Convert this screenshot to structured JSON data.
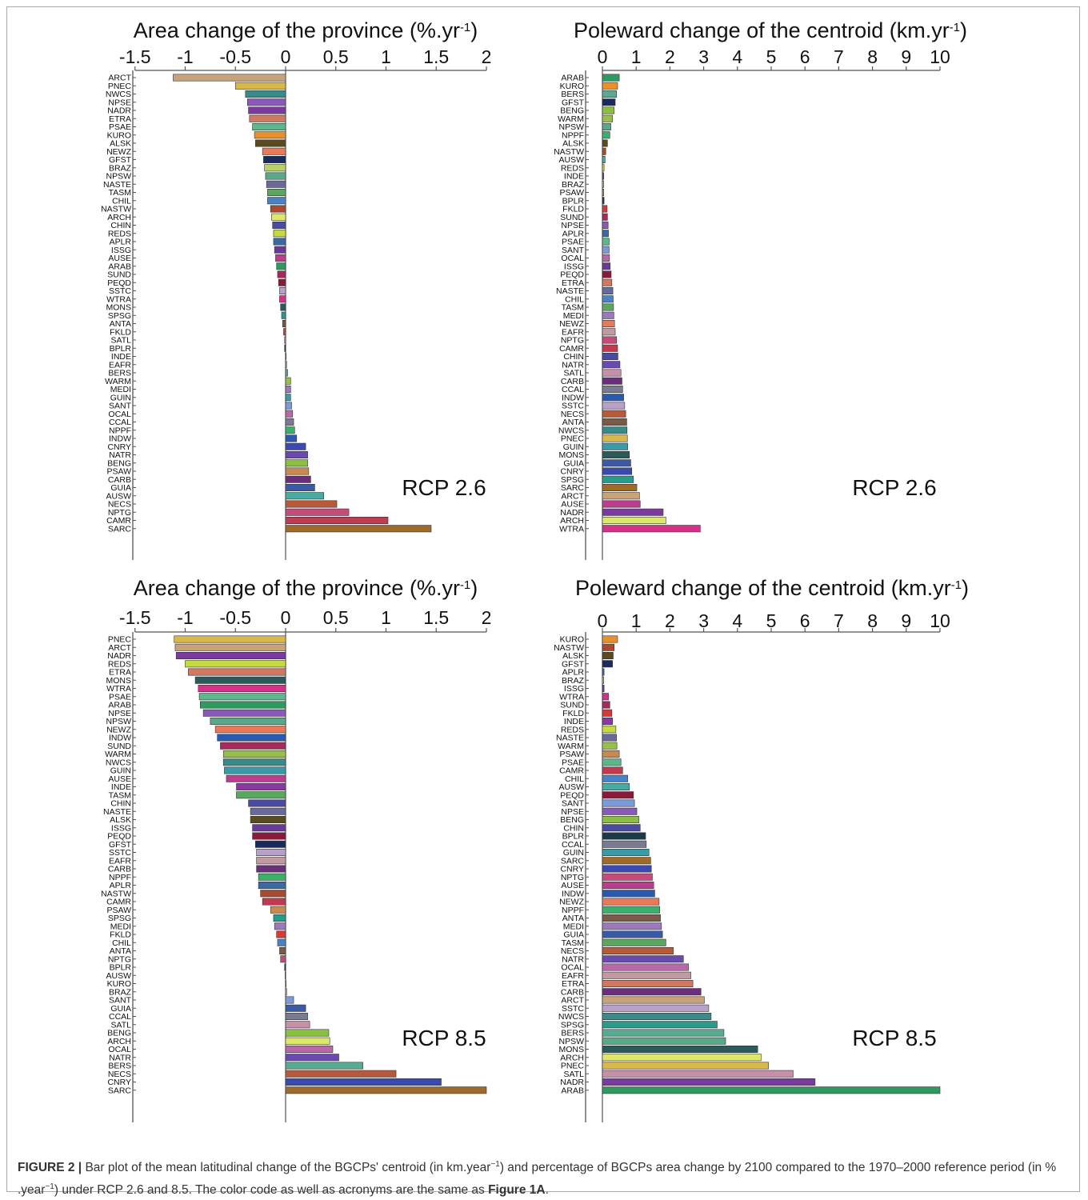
{
  "chart_data": [
    {
      "type": "bar",
      "orientation": "horizontal",
      "title": "Area change of the province (%.yr-1)",
      "scenario": "RCP 2.6",
      "xlim": [
        -1.5,
        2
      ],
      "xticks": [
        "-1.5",
        "-1",
        "-0.5",
        "0",
        "0.5",
        "1",
        "1.5",
        "2"
      ],
      "categories": [
        "ARCT",
        "PNEC",
        "NWCS",
        "NPSE",
        "NADR",
        "ETRA",
        "PSAE",
        "KURO",
        "ALSK",
        "NEWZ",
        "GFST",
        "BRAZ",
        "NPSW",
        "NASTE",
        "TASM",
        "CHIL",
        "NASTW",
        "ARCH",
        "CHIN",
        "REDS",
        "APLR",
        "ISSG",
        "AUSE",
        "ARAB",
        "SUND",
        "PEQD",
        "SSTC",
        "WTRA",
        "MONS",
        "SPSG",
        "ANTA",
        "FKLD",
        "SATL",
        "BPLR",
        "INDE",
        "EAFR",
        "BERS",
        "WARM",
        "MEDI",
        "GUIN",
        "SANT",
        "OCAL",
        "CCAL",
        "NPPF",
        "INDW",
        "CNRY",
        "NATR",
        "BENG",
        "PSAW",
        "CARB",
        "GUIA",
        "AUSW",
        "NECS",
        "NPTG",
        "CAMR",
        "SARC"
      ],
      "values": [
        -1.12,
        -0.5,
        -0.4,
        -0.38,
        -0.37,
        -0.36,
        -0.33,
        -0.31,
        -0.3,
        -0.23,
        -0.22,
        -0.21,
        -0.2,
        -0.19,
        -0.18,
        -0.18,
        -0.15,
        -0.14,
        -0.13,
        -0.12,
        -0.12,
        -0.11,
        -0.1,
        -0.09,
        -0.08,
        -0.07,
        -0.06,
        -0.06,
        -0.05,
        -0.04,
        -0.03,
        -0.02,
        -0.01,
        -0.01,
        0.005,
        0.01,
        0.02,
        0.05,
        0.05,
        0.05,
        0.06,
        0.07,
        0.08,
        0.09,
        0.11,
        0.2,
        0.22,
        0.22,
        0.23,
        0.25,
        0.29,
        0.38,
        0.51,
        0.63,
        1.02,
        1.45
      ]
    },
    {
      "type": "bar",
      "orientation": "horizontal",
      "title": "Poleward change of the centroid (km.yr-1)",
      "scenario": "RCP 2.6",
      "xlim": [
        0,
        10
      ],
      "xticks": [
        "0",
        "1",
        "2",
        "3",
        "4",
        "5",
        "6",
        "7",
        "8",
        "9",
        "10"
      ],
      "categories": [
        "ARAB",
        "KURO",
        "BERS",
        "GFST",
        "BENG",
        "WARM",
        "NPSW",
        "NPPF",
        "ALSK",
        "NASTW",
        "AUSW",
        "REDS",
        "INDE",
        "BRAZ",
        "PSAW",
        "BPLR",
        "FKLD",
        "SUND",
        "NPSE",
        "APLR",
        "PSAE",
        "SANT",
        "OCAL",
        "ISSG",
        "PEQD",
        "ETRA",
        "NASTE",
        "CHIL",
        "TASM",
        "MEDI",
        "NEWZ",
        "EAFR",
        "NPTG",
        "CAMR",
        "CHIN",
        "NATR",
        "SATL",
        "CARB",
        "CCAL",
        "INDW",
        "SSTC",
        "NECS",
        "ANTA",
        "NWCS",
        "PNEC",
        "GUIN",
        "MONS",
        "GUIA",
        "CNRY",
        "SPSG",
        "SARC",
        "ARCT",
        "AUSE",
        "NADR",
        "ARCH",
        "WTRA"
      ],
      "values": [
        0.5,
        0.45,
        0.42,
        0.38,
        0.35,
        0.3,
        0.25,
        0.22,
        0.15,
        0.1,
        0.08,
        0.05,
        0.04,
        0.04,
        0.04,
        0.05,
        0.14,
        0.15,
        0.17,
        0.18,
        0.2,
        0.2,
        0.21,
        0.23,
        0.26,
        0.28,
        0.31,
        0.32,
        0.33,
        0.34,
        0.36,
        0.38,
        0.42,
        0.45,
        0.46,
        0.52,
        0.55,
        0.58,
        0.6,
        0.63,
        0.66,
        0.69,
        0.72,
        0.73,
        0.74,
        0.75,
        0.8,
        0.84,
        0.87,
        0.92,
        1.02,
        1.1,
        1.12,
        1.8,
        1.88,
        2.9
      ]
    },
    {
      "type": "bar",
      "orientation": "horizontal",
      "title": "Area change of the province (%.yr-1)",
      "scenario": "RCP 8.5",
      "xlim": [
        -1.5,
        2
      ],
      "xticks": [
        "-1.5",
        "-1",
        "-0.5",
        "0",
        "0.5",
        "1",
        "1.5",
        "2"
      ],
      "categories": [
        "PNEC",
        "ARCT",
        "NADR",
        "REDS",
        "ETRA",
        "MONS",
        "WTRA",
        "PSAE",
        "ARAB",
        "NPSE",
        "NPSW",
        "NEWZ",
        "INDW",
        "SUND",
        "WARM",
        "NWCS",
        "GUIN",
        "AUSE",
        "INDE",
        "TASM",
        "CHIN",
        "NASTE",
        "ALSK",
        "ISSG",
        "PEQD",
        "GFST",
        "SSTC",
        "EAFR",
        "CARB",
        "NPPF",
        "APLR",
        "NASTW",
        "CAMR",
        "PSAW",
        "SPSG",
        "MEDI",
        "FKLD",
        "CHIL",
        "ANTA",
        "NPTG",
        "BPLR",
        "AUSW",
        "KURO",
        "BRAZ",
        "SANT",
        "GUIA",
        "CCAL",
        "SATL",
        "BENG",
        "ARCH",
        "OCAL",
        "NATR",
        "BERS",
        "NECS",
        "CNRY",
        "SARC"
      ],
      "values": [
        -1.11,
        -1.1,
        -1.09,
        -1.0,
        -0.97,
        -0.9,
        -0.87,
        -0.86,
        -0.85,
        -0.82,
        -0.75,
        -0.7,
        -0.68,
        -0.65,
        -0.62,
        -0.62,
        -0.61,
        -0.59,
        -0.49,
        -0.49,
        -0.37,
        -0.35,
        -0.35,
        -0.33,
        -0.33,
        -0.3,
        -0.29,
        -0.29,
        -0.29,
        -0.27,
        -0.27,
        -0.25,
        -0.23,
        -0.15,
        -0.12,
        -0.11,
        -0.09,
        -0.08,
        -0.06,
        -0.05,
        -0.01,
        -0.005,
        0.005,
        0.01,
        0.08,
        0.2,
        0.22,
        0.24,
        0.43,
        0.44,
        0.47,
        0.53,
        0.77,
        1.1,
        1.55,
        2.0
      ]
    },
    {
      "type": "bar",
      "orientation": "horizontal",
      "title": "Poleward change of the centroid (km.yr-1)",
      "scenario": "RCP 8.5",
      "xlim": [
        0,
        10
      ],
      "xticks": [
        "0",
        "1",
        "2",
        "3",
        "4",
        "5",
        "6",
        "7",
        "8",
        "9",
        "10"
      ],
      "categories": [
        "KURO",
        "NASTW",
        "ALSK",
        "GFST",
        "APLR",
        "BRAZ",
        "ISSG",
        "WTRA",
        "SUND",
        "FKLD",
        "INDE",
        "REDS",
        "NASTE",
        "WARM",
        "PSAW",
        "PSAE",
        "CAMR",
        "CHIL",
        "AUSW",
        "PEQD",
        "SANT",
        "NPSE",
        "BENG",
        "CHIN",
        "BPLR",
        "CCAL",
        "GUIN",
        "SARC",
        "CNRY",
        "NPTG",
        "AUSE",
        "INDW",
        "NEWZ",
        "NPPF",
        "ANTA",
        "MEDI",
        "GUIA",
        "TASM",
        "NECS",
        "NATR",
        "OCAL",
        "EAFR",
        "ETRA",
        "CARB",
        "ARCT",
        "SSTC",
        "NWCS",
        "SPSG",
        "BERS",
        "NPSW",
        "MONS",
        "ARCH",
        "PNEC",
        "SATL",
        "NADR",
        "ARAB"
      ],
      "values": [
        0.45,
        0.35,
        0.32,
        0.3,
        0.05,
        0.04,
        0.05,
        0.18,
        0.22,
        0.28,
        0.3,
        0.4,
        0.42,
        0.43,
        0.5,
        0.55,
        0.6,
        0.75,
        0.8,
        0.92,
        0.95,
        1.02,
        1.08,
        1.12,
        1.28,
        1.3,
        1.38,
        1.43,
        1.45,
        1.48,
        1.52,
        1.55,
        1.68,
        1.7,
        1.72,
        1.75,
        1.78,
        1.88,
        2.1,
        2.4,
        2.55,
        2.62,
        2.68,
        2.92,
        3.02,
        3.15,
        3.22,
        3.4,
        3.6,
        3.65,
        4.6,
        4.7,
        4.92,
        5.65,
        6.3,
        10.0
      ]
    }
  ],
  "rcp_labels": [
    "RCP 2.6",
    "RCP 2.6",
    "RCP 8.5",
    "RCP 8.5"
  ],
  "caption": {
    "label": "FIGURE 2 |",
    "text_before_sup1": "Bar plot of the mean latitudinal change of the BGCPs' centroid (in km.year",
    "sup1": "−1",
    "text_before_sup2": ") and percentage of BGCPs area change by 2100 compared to the 1970–2000 reference period (in % .year",
    "sup2": "−1",
    "text_after": ") under RCP 2.6 and 8.5. The color code as well as acronyms are the same as",
    "ref": "Figure 1A",
    "end": "."
  },
  "colors": {
    "ARAB": "#2e9a5e",
    "ARCH": "#dde86a",
    "ARCT": "#c8a27a",
    "ALSK": "#5a4a20",
    "ANTA": "#7a5a48",
    "APLR": "#3a6aa0",
    "AUSE": "#bb3e8e",
    "AUSW": "#48aaa0",
    "BENG": "#8ac040",
    "BERS": "#5aaa92",
    "BPLR": "#1a3a4a",
    "BRAZ": "#b8d068",
    "CAMR": "#c23a50",
    "CARB": "#6a2e7a",
    "CCAL": "#7a7a90",
    "CHIL": "#4a82c8",
    "CHIN": "#4a4aa0",
    "CNRY": "#3a4ab0",
    "EAFR": "#c09aa0",
    "ETRA": "#d07860",
    "FKLD": "#d83a3a",
    "GFST": "#1a2a5a",
    "GUIA": "#3a5aa8",
    "GUIN": "#3a9aa8",
    "INDE": "#8a3a9a",
    "INDW": "#2a5ab0",
    "ISSG": "#6a3a9a",
    "KURO": "#e8902a",
    "MEDI": "#9a7ab8",
    "MONS": "#2a5a5a",
    "NADR": "#7a3aa0",
    "NASTE": "#6a6a9a",
    "NASTW": "#a84a30",
    "NATR": "#6a4ab0",
    "NECS": "#b85a3a",
    "NEWZ": "#e87a5a",
    "NPPF": "#3ab06a",
    "NPSE": "#8a5ab8",
    "NPSW": "#5aa888",
    "NPTG": "#c84a7a",
    "NWCS": "#3a8a8a",
    "OCAL": "#b86aa8",
    "PEQD": "#8a1a3a",
    "PNEC": "#d8b84a",
    "PSAE": "#5ab88a",
    "PSAW": "#c88a50",
    "REDS": "#c8d840",
    "SANT": "#7a9ad8",
    "SARC": "#a06a2a",
    "SATL": "#c890a8",
    "SPSG": "#2a9a8a",
    "SSTC": "#b8a0c8",
    "SUND": "#a82a5a",
    "TASM": "#5aa860",
    "WARM": "#98c048",
    "WTRA": "#d8308a"
  }
}
